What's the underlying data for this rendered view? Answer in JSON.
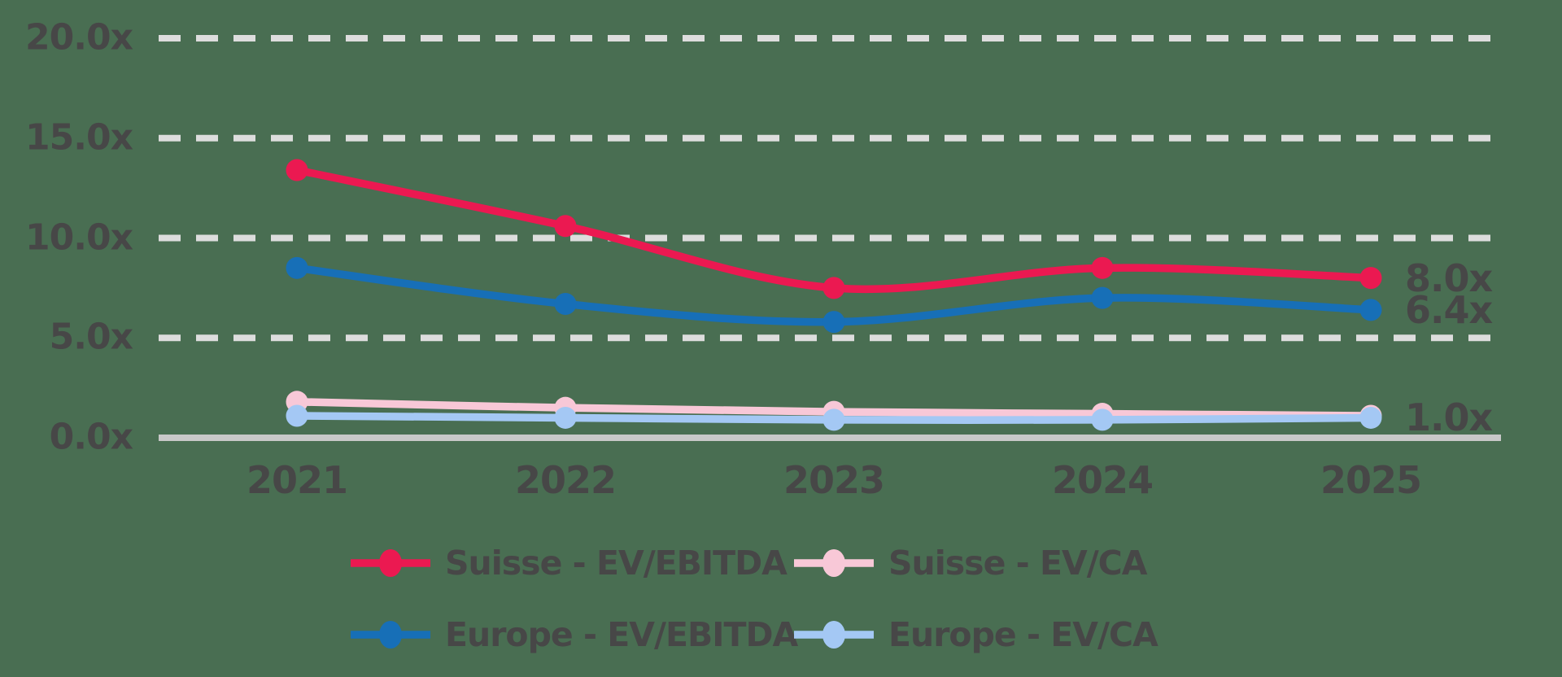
{
  "colors": {
    "background": "#496E52",
    "gridline": "#DDDDDD",
    "axis_line": "#C8C8C8",
    "text": "#474747"
  },
  "chart_data": {
    "type": "line",
    "x": [
      "2021",
      "2022",
      "2023",
      "2024",
      "2025"
    ],
    "series": [
      {
        "name": "Suisse - EV/EBITDA",
        "color": "#EB1951",
        "values": [
          13.4,
          10.6,
          7.5,
          8.5,
          8.0
        ]
      },
      {
        "name": "Suisse - EV/CA",
        "color": "#F8C8D7",
        "values": [
          1.8,
          1.5,
          1.3,
          1.2,
          1.1
        ]
      },
      {
        "name": "Europe - EV/EBITDA",
        "color": "#176FB7",
        "values": [
          8.5,
          6.7,
          5.8,
          7.0,
          6.4
        ]
      },
      {
        "name": "Europe - EV/CA",
        "color": "#A4C8F4",
        "values": [
          1.1,
          1.0,
          0.9,
          0.9,
          1.0
        ]
      }
    ],
    "y_ticks": [
      {
        "label": "20.0x",
        "value": 20
      },
      {
        "label": "15.0x",
        "value": 15
      },
      {
        "label": "10.0x",
        "value": 10
      },
      {
        "label": "5.0x",
        "value": 5
      },
      {
        "label": "0.0x",
        "value": 0
      }
    ],
    "ylim": [
      0,
      20
    ],
    "end_labels": [
      {
        "text": "8.0x",
        "value": 8.0,
        "series": "Suisse - EV/EBITDA"
      },
      {
        "text": "6.4x",
        "value": 6.4,
        "series": "Europe - EV/EBITDA"
      },
      {
        "text": "1.0x",
        "value": 1.0,
        "series": "Europe - EV/CA"
      }
    ],
    "grid": "horizontal-dashed",
    "legend_position": "bottom"
  }
}
